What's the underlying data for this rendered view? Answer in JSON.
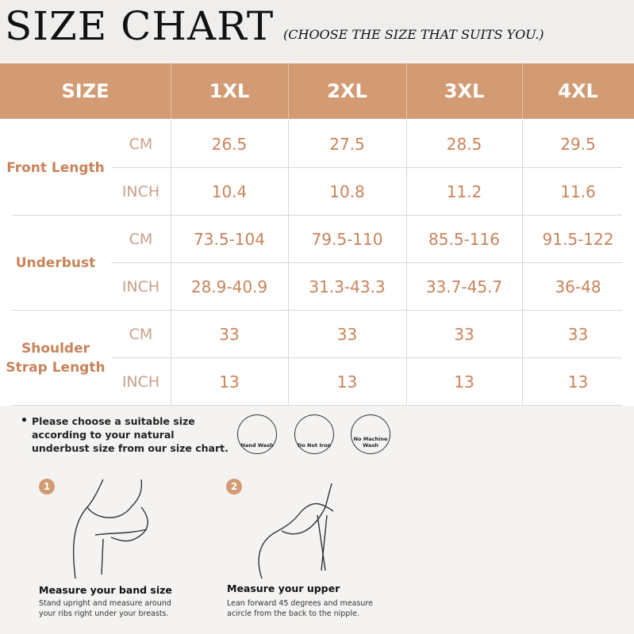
{
  "header": {
    "title": "SIZE CHART",
    "subtitle": "(CHOOSE THE SIZE THAT SUITS YOU.)"
  },
  "table": {
    "columns": [
      "SIZE",
      "1XL",
      "2XL",
      "3XL",
      "4XL"
    ],
    "groups": [
      {
        "label": "Front Length",
        "rows": [
          {
            "unit": "CM",
            "values": [
              26.5,
              27.5,
              28.5,
              29.5
            ]
          },
          {
            "unit": "INCH",
            "values": [
              10.4,
              10.8,
              11.2,
              11.6
            ]
          }
        ]
      },
      {
        "label": "Underbust",
        "rows": [
          {
            "unit": "CM",
            "values": [
              "73.5-104",
              "79.5-110",
              "85.5-116",
              "91.5-122"
            ]
          },
          {
            "unit": "INCH",
            "values": [
              "28.9-40.9",
              "31.3-43.3",
              "33.7-45.7",
              "36-48"
            ]
          }
        ]
      },
      {
        "label": "Shoulder Strap Length",
        "rows": [
          {
            "unit": "CM",
            "values": [
              33,
              33,
              33,
              33
            ]
          },
          {
            "unit": "INCH",
            "values": [
              13,
              13,
              13,
              13
            ]
          }
        ]
      }
    ]
  },
  "note": "Please choose a suitable size according to your natural underbust size from our size chart.",
  "care": [
    "Hand Wash",
    "Do Not Iron",
    "No Machine Wash"
  ],
  "steps": [
    {
      "number": "1",
      "title": "Measure your band size",
      "text": "Stand upright and measure around your ribs right under your breasts."
    },
    {
      "number": "2",
      "title": "Measure your upper",
      "text": "Lean forward 45 degrees and measure acircle from the back to the nipple."
    }
  ]
}
